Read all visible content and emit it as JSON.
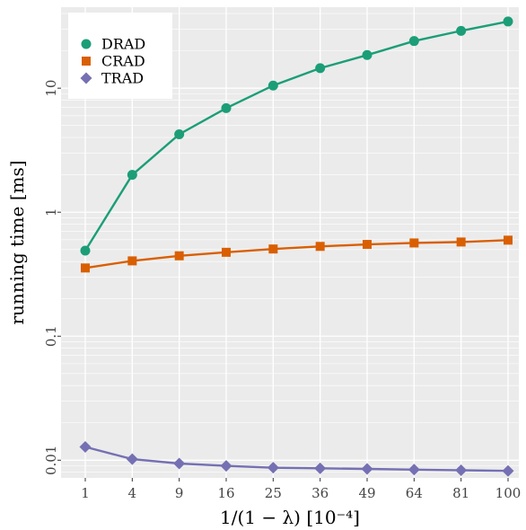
{
  "chart_data": {
    "type": "line",
    "xlabel": "1/(1 − λ) [10⁻⁴]",
    "ylabel": "running time [ms]",
    "yscale": "log",
    "ylim": [
      0.0072,
      45
    ],
    "grid": true,
    "legend": "top-left",
    "categories": [
      "1",
      "4",
      "9",
      "16",
      "25",
      "36",
      "49",
      "64",
      "81",
      "100"
    ],
    "yticks": [
      {
        "value": 0.01,
        "label": "0.01"
      },
      {
        "value": 0.1,
        "label": "0.1"
      },
      {
        "value": 1,
        "label": "1"
      },
      {
        "value": 10,
        "label": "10"
      }
    ],
    "series": [
      {
        "name": "DRAD",
        "marker": "circle",
        "color": "#1b9e77",
        "values": [
          0.49,
          2.0,
          4.25,
          6.9,
          10.5,
          14.5,
          18.5,
          24.0,
          29.0,
          34.5
        ]
      },
      {
        "name": "CRAD",
        "marker": "square",
        "color": "#d95f02",
        "values": [
          0.355,
          0.405,
          0.445,
          0.475,
          0.505,
          0.53,
          0.55,
          0.565,
          0.575,
          0.595
        ]
      },
      {
        "name": "TRAD",
        "marker": "diamond",
        "color": "#7570b3",
        "values": [
          0.0128,
          0.0102,
          0.0094,
          0.009,
          0.0087,
          0.0086,
          0.0085,
          0.0084,
          0.0083,
          0.0082
        ]
      }
    ]
  }
}
